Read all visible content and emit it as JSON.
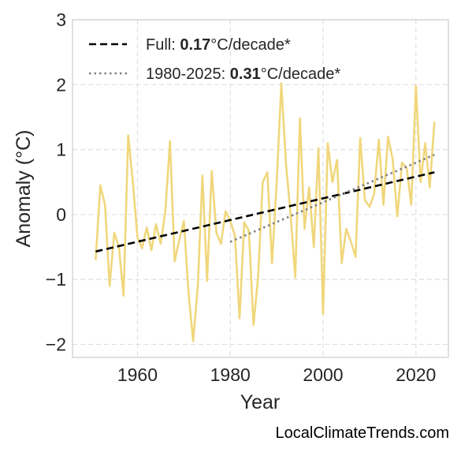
{
  "chart_data": {
    "type": "line",
    "xlabel": "Year",
    "ylabel": "Anomaly (°C)",
    "xlim": [
      1946,
      2027
    ],
    "ylim": [
      -2.2,
      3.0
    ],
    "xticks": [
      1960,
      1980,
      2000,
      2020
    ],
    "yticks": [
      -2,
      -1,
      0,
      1,
      2,
      3
    ],
    "ytick_labels": [
      "−2",
      "−1",
      "0",
      "1",
      "2",
      "3"
    ],
    "grid": true,
    "legend_position": "top-left",
    "colors": {
      "anomaly": "#f0d77c",
      "full_trend": "#000000",
      "recent_trend": "#808080"
    },
    "series": [
      {
        "style": "solid",
        "x": [
          1951,
          1952,
          1953,
          1954,
          1955,
          1956,
          1957,
          1958,
          1959,
          1960,
          1961,
          1962,
          1963,
          1964,
          1965,
          1966,
          1967,
          1968,
          1969,
          1970,
          1971,
          1972,
          1973,
          1974,
          1975,
          1976,
          1977,
          1978,
          1979,
          1980,
          1981,
          1982,
          1983,
          1984,
          1985,
          1986,
          1987,
          1988,
          1989,
          1990,
          1991,
          1992,
          1993,
          1994,
          1995,
          1996,
          1997,
          1998,
          1999,
          2000,
          2001,
          2002,
          2003,
          2004,
          2005,
          2006,
          2007,
          2008,
          2009,
          2010,
          2011,
          2012,
          2013,
          2014,
          2015,
          2016,
          2017,
          2018,
          2019,
          2020,
          2021,
          2022,
          2023,
          2024
        ],
        "values": [
          -0.7,
          0.45,
          0.15,
          -1.1,
          -0.28,
          -0.5,
          -1.25,
          1.22,
          0.5,
          -0.35,
          -0.52,
          -0.2,
          -0.55,
          -0.15,
          -0.45,
          0.05,
          1.13,
          -0.72,
          -0.4,
          -0.1,
          -1.2,
          -1.95,
          -1.1,
          0.6,
          -1.02,
          0.67,
          -0.28,
          -0.45,
          0.05,
          -0.1,
          -0.32,
          -1.6,
          -0.12,
          -0.25,
          -1.7,
          -0.95,
          0.5,
          0.65,
          -0.75,
          0.5,
          2.02,
          0.78,
          0.0,
          -0.97,
          1.48,
          -0.22,
          0.42,
          -0.5,
          1.02,
          -1.53,
          1.1,
          0.5,
          0.84,
          -0.75,
          -0.22,
          -0.42,
          -0.65,
          1.18,
          0.22,
          0.12,
          0.32,
          1.15,
          0.15,
          1.2,
          0.85,
          -0.03,
          0.8,
          0.72,
          0.15,
          1.98,
          0.5,
          1.1,
          0.42,
          1.43
        ]
      },
      {
        "name": "Full:",
        "rate": "0.17",
        "unit": "°C/decade*",
        "style": "dashed",
        "x": [
          1951,
          2024
        ],
        "values": [
          -0.57,
          0.65
        ]
      },
      {
        "name": "1980-2025:",
        "rate": "0.31",
        "unit": "°C/decade*",
        "style": "dotted",
        "x": [
          1980,
          2024
        ],
        "values": [
          -0.42,
          0.92
        ]
      }
    ],
    "watermark": "LocalClimateTrends.com"
  }
}
